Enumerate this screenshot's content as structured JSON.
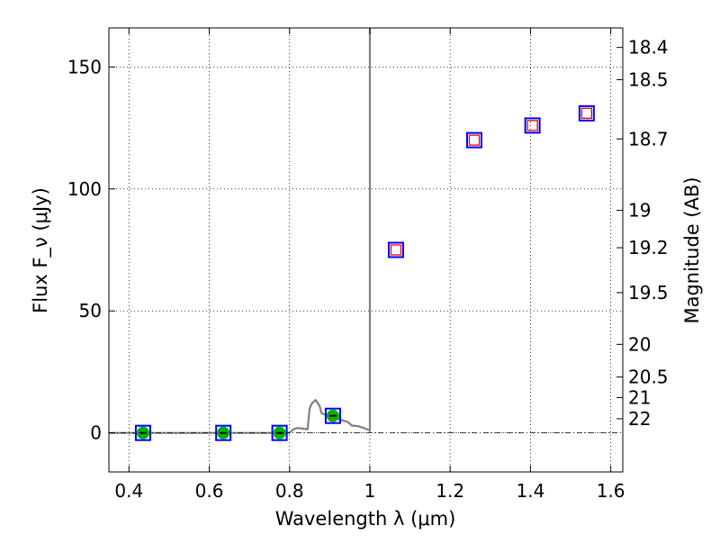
{
  "chart_data": {
    "type": "scatter",
    "xlabel": "Wavelength λ (μm)",
    "ylabel": "Flux F_ν (μJy)",
    "y2label": "Magnitude (AB)",
    "xlim": [
      0.35,
      1.63
    ],
    "ylim": [
      -16,
      166
    ],
    "grid": true,
    "x_ticks": [
      0.4,
      0.6,
      0.8,
      1.0,
      1.2,
      1.4,
      1.6
    ],
    "x_tick_labels": [
      "0.4",
      "0.6",
      "0.8",
      "1",
      "1.2",
      "1.4",
      "1.6"
    ],
    "y_ticks": [
      0,
      50,
      100,
      150
    ],
    "y_tick_labels": [
      "0",
      "50",
      "100",
      "150"
    ],
    "mag_ticks": [
      {
        "label": "18.4",
        "flux": 158.0
      },
      {
        "label": "18.5",
        "flux": 144.8
      },
      {
        "label": "18.7",
        "flux": 120.5
      },
      {
        "label": "19",
        "flux": 91.2
      },
      {
        "label": "19.2",
        "flux": 75.9
      },
      {
        "label": "19.5",
        "flux": 57.5
      },
      {
        "label": "20",
        "flux": 36.3
      },
      {
        "label": "20.5",
        "flux": 22.9
      },
      {
        "label": "21",
        "flux": 14.5
      },
      {
        "label": "22",
        "flux": 5.8
      }
    ],
    "model_spectrum": {
      "color": "#808080",
      "x": [
        0.35,
        0.8,
        0.81,
        0.82,
        0.845,
        0.85,
        0.855,
        0.865,
        0.875,
        0.88,
        0.89,
        0.905,
        0.925,
        0.945,
        0.955,
        0.97,
        0.985,
        1.0,
        1.0,
        1.0
      ],
      "y": [
        0,
        0,
        1.5,
        2.0,
        1.5,
        10.0,
        12.0,
        13.5,
        11.0,
        8.0,
        7.5,
        6.5,
        5.5,
        4.5,
        3.0,
        2.8,
        2.0,
        1.0,
        166,
        166
      ]
    },
    "series": [
      {
        "name": "",
        "marker": "open square",
        "color": "#0000ff",
        "x": [
          0.435,
          0.635,
          0.775,
          0.908,
          1.065,
          1.26,
          1.405,
          1.54
        ],
        "y": [
          0,
          0,
          0,
          7,
          75,
          120,
          126,
          131
        ]
      },
      {
        "name": "",
        "marker": "open square",
        "color": "#ff0000",
        "x": [
          1.065,
          1.26,
          1.405,
          1.54
        ],
        "y": [
          75,
          120,
          126,
          131
        ]
      },
      {
        "name": "",
        "marker": "filled circle",
        "color": "#00b000",
        "x": [
          0.435,
          0.635,
          0.775,
          0.908
        ],
        "y": [
          0,
          0,
          0,
          7
        ]
      }
    ],
    "zero_line": {
      "y": 0,
      "style": "dash-dot"
    }
  }
}
